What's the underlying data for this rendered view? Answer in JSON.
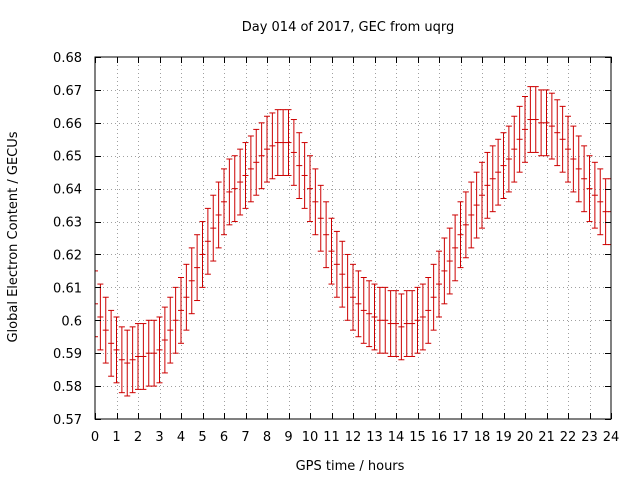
{
  "chart_data": {
    "type": "scatter",
    "title": "Day 014 of 2017, GEC from uqrg",
    "xlabel": "GPS time / hours",
    "ylabel": "Global Electron Content / GECUs",
    "xlim": [
      0,
      24
    ],
    "ylim": [
      0.57,
      0.68
    ],
    "xticks": [
      0,
      1,
      2,
      3,
      4,
      5,
      6,
      7,
      8,
      9,
      10,
      11,
      12,
      13,
      14,
      15,
      16,
      17,
      18,
      19,
      20,
      21,
      22,
      23,
      24
    ],
    "yticks": [
      0.57,
      0.58,
      0.59,
      0.6,
      0.61,
      0.62,
      0.63,
      0.64,
      0.65,
      0.66,
      0.67,
      0.68
    ],
    "ytick_labels": [
      "0.57",
      "0.58",
      "0.59",
      "0.6",
      "0.61",
      "0.62",
      "0.63",
      "0.64",
      "0.65",
      "0.66",
      "0.67",
      "0.68"
    ],
    "grid": true,
    "error_bar": 0.01,
    "color": "#cc0000",
    "series": [
      {
        "x": [
          0,
          0.25,
          0.5,
          0.75,
          1,
          1.25,
          1.5,
          1.75,
          2,
          2.25,
          2.5,
          2.75,
          3,
          3.25,
          3.5,
          3.75,
          4,
          4.25,
          4.5,
          4.75,
          5,
          5.25,
          5.5,
          5.75,
          6,
          6.25,
          6.5,
          6.75,
          7,
          7.25,
          7.5,
          7.75,
          8,
          8.25,
          8.5,
          8.75,
          9,
          9.25,
          9.5,
          9.75,
          10,
          10.25,
          10.5,
          10.75,
          11,
          11.25,
          11.5,
          11.75,
          12,
          12.25,
          12.5,
          12.75,
          13,
          13.25,
          13.5,
          13.75,
          14,
          14.25,
          14.5,
          14.75,
          15,
          15.25,
          15.5,
          15.75,
          16,
          16.25,
          16.5,
          16.75,
          17,
          17.25,
          17.5,
          17.75,
          18,
          18.25,
          18.5,
          18.75,
          19,
          19.25,
          19.5,
          19.75,
          20,
          20.25,
          20.5,
          20.75,
          21,
          21.25,
          21.5,
          21.75,
          22,
          22.25,
          22.5,
          22.75,
          23,
          23.25,
          23.5,
          23.75,
          24
        ],
        "y": [
          0.605,
          0.601,
          0.597,
          0.593,
          0.591,
          0.588,
          0.587,
          0.588,
          0.589,
          0.589,
          0.59,
          0.59,
          0.591,
          0.594,
          0.597,
          0.6,
          0.603,
          0.607,
          0.612,
          0.616,
          0.62,
          0.624,
          0.628,
          0.632,
          0.636,
          0.639,
          0.64,
          0.642,
          0.644,
          0.646,
          0.648,
          0.65,
          0.652,
          0.653,
          0.654,
          0.654,
          0.654,
          0.651,
          0.647,
          0.644,
          0.64,
          0.636,
          0.631,
          0.626,
          0.621,
          0.617,
          0.614,
          0.61,
          0.607,
          0.605,
          0.603,
          0.602,
          0.601,
          0.6,
          0.6,
          0.599,
          0.599,
          0.598,
          0.599,
          0.599,
          0.6,
          0.601,
          0.603,
          0.607,
          0.611,
          0.615,
          0.618,
          0.622,
          0.626,
          0.629,
          0.632,
          0.635,
          0.638,
          0.641,
          0.643,
          0.645,
          0.647,
          0.649,
          0.652,
          0.655,
          0.658,
          0.661,
          0.661,
          0.66,
          0.66,
          0.659,
          0.657,
          0.655,
          0.652,
          0.649,
          0.646,
          0.643,
          0.64,
          0.638,
          0.636,
          0.633,
          0.633
        ]
      }
    ]
  }
}
